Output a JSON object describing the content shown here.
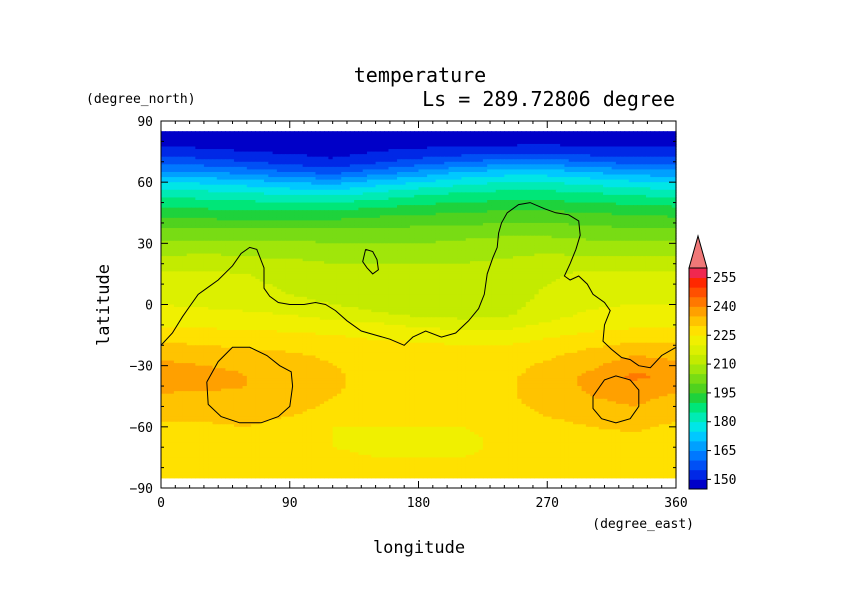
{
  "chart_data": {
    "type": "heatmap",
    "title": "temperature",
    "subtitle": "Ls = 289.72806 degree",
    "xlabel": "longitude",
    "ylabel": "latitude",
    "x_unit": "(degree_east)",
    "y_unit": "(degree_north)",
    "xlim": [
      0,
      360
    ],
    "ylim": [
      -90,
      90
    ],
    "x_ticks": [
      "0",
      "90",
      "180",
      "270",
      "360"
    ],
    "y_ticks": [
      "90",
      "60",
      "30",
      "0",
      "−30",
      "−60",
      "−90"
    ],
    "x_tick_values": [
      0,
      90,
      180,
      270,
      360
    ],
    "y_tick_values": [
      90,
      60,
      30,
      0,
      -30,
      -60,
      -90
    ],
    "legend_position": "right",
    "colorbar": {
      "labels": [
        "255",
        "240",
        "225",
        "210",
        "195",
        "180",
        "165",
        "150"
      ],
      "label_values": [
        255,
        240,
        225,
        210,
        195,
        180,
        165,
        150
      ],
      "levels": [
        145,
        150,
        155,
        160,
        165,
        170,
        175,
        180,
        185,
        190,
        195,
        200,
        205,
        210,
        215,
        220,
        225,
        230,
        235,
        240,
        245,
        250,
        255,
        260
      ],
      "colors": [
        "#0000c8",
        "#0028e6",
        "#0050f5",
        "#0078ff",
        "#00a0ff",
        "#00c8ff",
        "#00e6e6",
        "#00ebb4",
        "#00e678",
        "#1ed23c",
        "#50d21e",
        "#78dc14",
        "#a0e60a",
        "#c3eb00",
        "#dcf000",
        "#f0f000",
        "#ffe100",
        "#ffc300",
        "#ffa000",
        "#ff7800",
        "#ff5000",
        "#ff2800",
        "#f02850"
      ],
      "extend": "max",
      "extend_color": "#f07878"
    },
    "lon": [
      0,
      30,
      60,
      90,
      120,
      150,
      180,
      210,
      240,
      270,
      300,
      330,
      360
    ],
    "lat": [
      85,
      80,
      75,
      70,
      65,
      60,
      55,
      50,
      45,
      40,
      35,
      30,
      25,
      20,
      15,
      10,
      5,
      0,
      -5,
      -10,
      -15,
      -20,
      -25,
      -30,
      -35,
      -40,
      -45,
      -50,
      -55,
      -60,
      -65,
      -70,
      -75,
      -80,
      -85
    ],
    "values": [
      [
        147,
        147,
        147,
        147,
        147,
        147,
        147,
        147,
        147,
        147,
        147,
        147,
        147
      ],
      [
        148,
        148,
        148,
        147,
        147,
        148,
        148,
        148,
        148,
        148,
        148,
        148,
        148
      ],
      [
        152,
        151,
        150,
        149,
        148,
        150,
        151,
        152,
        153,
        154,
        152,
        152,
        152
      ],
      [
        158,
        157,
        155,
        153,
        151,
        154,
        157,
        160,
        162,
        162,
        160,
        158,
        158
      ],
      [
        166,
        165,
        163,
        160,
        158,
        162,
        166,
        170,
        172,
        172,
        170,
        167,
        166
      ],
      [
        175,
        174,
        172,
        170,
        168,
        172,
        175,
        178,
        180,
        180,
        178,
        176,
        175
      ],
      [
        182,
        181,
        180,
        178,
        177,
        180,
        183,
        185,
        186,
        186,
        185,
        183,
        182
      ],
      [
        188,
        187,
        186,
        185,
        185,
        187,
        189,
        190,
        191,
        191,
        190,
        189,
        188
      ],
      [
        193,
        192,
        191,
        191,
        191,
        193,
        194,
        195,
        196,
        196,
        195,
        194,
        193
      ],
      [
        198,
        197,
        197,
        197,
        197,
        198,
        199,
        199,
        200,
        200,
        199,
        198,
        198
      ],
      [
        202,
        202,
        202,
        202,
        202,
        202,
        202,
        203,
        204,
        204,
        203,
        202,
        202
      ],
      [
        206,
        206,
        206,
        206,
        205,
        205,
        205,
        206,
        207,
        207,
        206,
        206,
        206
      ],
      [
        209,
        210,
        209,
        209,
        208,
        208,
        208,
        208,
        209,
        210,
        209,
        209,
        209
      ],
      [
        213,
        213,
        212,
        211,
        210,
        210,
        210,
        210,
        211,
        213,
        213,
        213,
        213
      ],
      [
        216,
        216,
        215,
        213,
        211,
        211,
        211,
        211,
        212,
        214,
        216,
        216,
        216
      ],
      [
        217,
        217,
        216,
        214,
        212,
        211,
        211,
        211,
        212,
        215,
        217,
        218,
        217
      ],
      [
        218,
        218,
        217,
        215,
        213,
        212,
        211,
        211,
        212,
        216,
        218,
        219,
        218
      ],
      [
        220,
        219,
        218,
        217,
        215,
        213,
        212,
        212,
        213,
        217,
        219,
        220,
        220
      ],
      [
        222,
        222,
        221,
        220,
        218,
        216,
        214,
        213,
        214,
        218,
        221,
        222,
        222
      ],
      [
        224,
        224,
        224,
        223,
        222,
        221,
        219,
        218,
        218,
        221,
        223,
        224,
        224
      ],
      [
        227,
        227,
        226,
        226,
        225,
        224,
        223,
        222,
        222,
        224,
        226,
        227,
        227
      ],
      [
        231,
        230,
        229,
        228,
        227,
        226,
        226,
        225,
        225,
        227,
        229,
        231,
        231
      ],
      [
        234,
        233,
        232,
        231,
        229,
        227,
        227,
        227,
        227,
        229,
        232,
        235,
        234
      ],
      [
        236,
        235,
        234,
        233,
        230,
        228,
        228,
        228,
        228,
        231,
        234,
        238,
        236
      ],
      [
        239,
        237,
        235,
        234,
        231,
        228,
        228,
        228,
        229,
        232,
        236,
        241,
        239
      ],
      [
        237,
        236,
        235,
        234,
        231,
        228,
        228,
        228,
        229,
        232,
        236,
        239,
        237
      ],
      [
        234,
        234,
        234,
        233,
        230,
        228,
        228,
        228,
        229,
        232,
        235,
        237,
        234
      ],
      [
        232,
        232,
        233,
        232,
        229,
        227,
        227,
        227,
        229,
        231,
        233,
        235,
        232
      ],
      [
        231,
        231,
        232,
        230,
        227,
        226,
        226,
        226,
        228,
        230,
        231,
        233,
        231
      ],
      [
        229,
        229,
        230,
        227,
        225,
        225,
        225,
        225,
        227,
        229,
        230,
        231,
        229
      ],
      [
        228,
        228,
        228,
        226,
        225,
        224,
        224,
        224,
        226,
        228,
        228,
        229,
        228
      ],
      [
        227,
        227,
        227,
        226,
        225,
        224,
        224,
        224,
        226,
        227,
        227,
        227,
        227
      ],
      [
        227,
        227,
        227,
        227,
        226,
        225,
        225,
        225,
        226,
        227,
        227,
        227,
        227
      ],
      [
        227,
        227,
        227,
        227,
        227,
        226,
        226,
        226,
        227,
        227,
        227,
        227,
        227
      ],
      [
        227,
        227,
        227,
        227,
        227,
        227,
        227,
        227,
        227,
        227,
        227,
        227,
        227
      ]
    ],
    "topography_contours": [
      [
        [
          0,
          -20
        ],
        [
          8,
          -14
        ],
        [
          15,
          -6
        ],
        [
          20,
          -1
        ],
        [
          26,
          5
        ],
        [
          32,
          8
        ],
        [
          40,
          12
        ],
        [
          50,
          19
        ],
        [
          56,
          25
        ],
        [
          62,
          28
        ],
        [
          67,
          27
        ],
        [
          72,
          18
        ],
        [
          72,
          8
        ],
        [
          76,
          4
        ],
        [
          82,
          1
        ],
        [
          90,
          0
        ],
        [
          100,
          0
        ],
        [
          108,
          1
        ],
        [
          115,
          0
        ],
        [
          122,
          -3
        ],
        [
          130,
          -8
        ],
        [
          140,
          -13
        ],
        [
          150,
          -15
        ],
        [
          160,
          -17
        ],
        [
          170,
          -20
        ],
        [
          176,
          -16
        ],
        [
          185,
          -13
        ],
        [
          196,
          -16
        ],
        [
          206,
          -14
        ],
        [
          215,
          -8
        ],
        [
          222,
          -2
        ],
        [
          226,
          5
        ],
        [
          228,
          15
        ],
        [
          232,
          23
        ],
        [
          235,
          28
        ],
        [
          236,
          35
        ],
        [
          238,
          40
        ],
        [
          242,
          45
        ],
        [
          250,
          49
        ],
        [
          258,
          50
        ],
        [
          268,
          47
        ],
        [
          276,
          45
        ],
        [
          285,
          44
        ],
        [
          292,
          41
        ],
        [
          293,
          34
        ],
        [
          290,
          27
        ],
        [
          286,
          20
        ],
        [
          282,
          14
        ],
        [
          286,
          12
        ],
        [
          292,
          14
        ],
        [
          298,
          10
        ],
        [
          302,
          5
        ],
        [
          310,
          1
        ],
        [
          314,
          -3
        ],
        [
          310,
          -10
        ],
        [
          309,
          -18
        ],
        [
          315,
          -22
        ],
        [
          322,
          -26
        ],
        [
          328,
          -27
        ],
        [
          334,
          -30
        ],
        [
          342,
          -31
        ],
        [
          350,
          -25
        ],
        [
          360,
          -21
        ]
      ],
      [
        [
          143,
          27
        ],
        [
          148,
          26
        ],
        [
          151,
          22
        ],
        [
          152,
          17
        ],
        [
          148,
          15
        ],
        [
          144,
          18
        ],
        [
          141,
          21
        ],
        [
          143,
          27
        ]
      ],
      [
        [
          32,
          -38
        ],
        [
          40,
          -28
        ],
        [
          50,
          -21
        ],
        [
          62,
          -21
        ],
        [
          74,
          -25
        ],
        [
          83,
          -30
        ],
        [
          91,
          -33
        ],
        [
          92,
          -40
        ],
        [
          90,
          -50
        ],
        [
          82,
          -55
        ],
        [
          70,
          -58
        ],
        [
          55,
          -58
        ],
        [
          42,
          -55
        ],
        [
          33,
          -49
        ],
        [
          32,
          -38
        ]
      ],
      [
        [
          302,
          -45
        ],
        [
          310,
          -37
        ],
        [
          318,
          -35
        ],
        [
          328,
          -37
        ],
        [
          334,
          -42
        ],
        [
          334,
          -50
        ],
        [
          328,
          -56
        ],
        [
          318,
          -58
        ],
        [
          308,
          -56
        ],
        [
          302,
          -51
        ],
        [
          302,
          -45
        ]
      ]
    ]
  }
}
